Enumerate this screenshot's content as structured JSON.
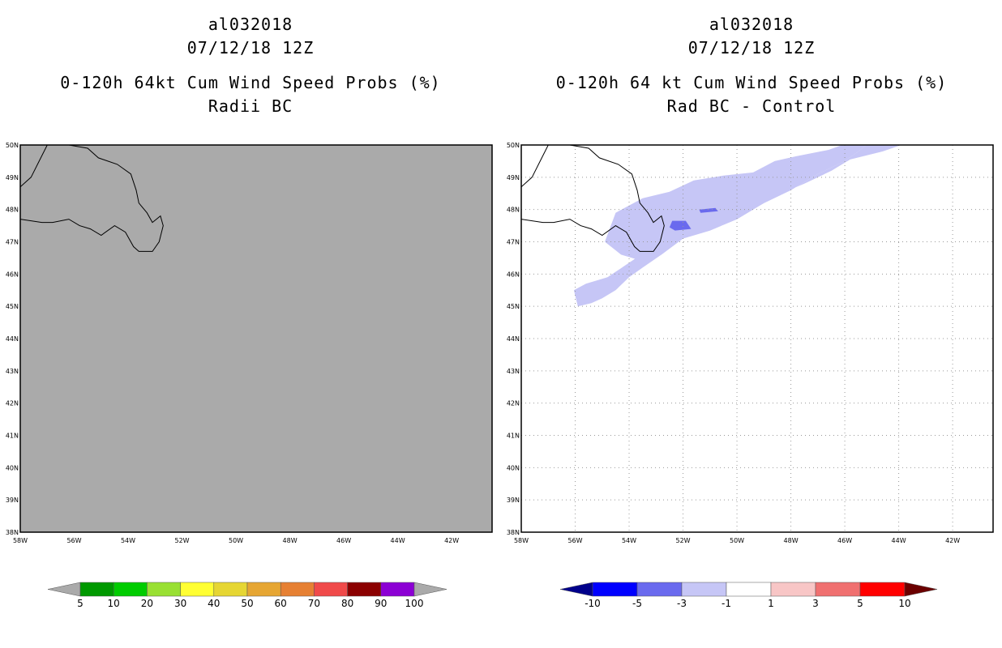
{
  "left_panel": {
    "title": [
      "al032018",
      "07/12/18 12Z",
      "0-120h 64kt Cum Wind Speed Probs (%)",
      "Radii BC"
    ],
    "fill_color": "#aaaaaa"
  },
  "right_panel": {
    "title": [
      "al032018",
      "07/12/18 12Z",
      "0-120h 64 kt Cum Wind Speed Probs (%)",
      "Rad BC - Control"
    ],
    "fill_color": "#ffffff"
  },
  "chart_data": {
    "type": "map",
    "region": {
      "lon_range": [
        -58,
        -40.5
      ],
      "lat_range": [
        38,
        50
      ]
    },
    "lat_labels": [
      "50N",
      "49N",
      "48N",
      "47N",
      "46N",
      "45N",
      "44N",
      "43N",
      "42N",
      "41N",
      "40N",
      "39N",
      "38N"
    ],
    "lon_labels": [
      "58W",
      "56W",
      "54W",
      "52W",
      "50W",
      "48W",
      "46W",
      "44W",
      "42W"
    ],
    "lat_values": [
      50,
      49,
      48,
      47,
      46,
      45,
      44,
      43,
      42,
      41,
      40,
      39,
      38
    ],
    "lon_values": [
      -58,
      -56,
      -54,
      -52,
      -50,
      -48,
      -46,
      -44,
      -42
    ],
    "coastline": [
      [
        -58,
        47.7
      ],
      [
        -57.2,
        47.6
      ],
      [
        -56.8,
        47.6
      ],
      [
        -56.2,
        47.7
      ],
      [
        -55.8,
        47.5
      ],
      [
        -55.4,
        47.4
      ],
      [
        -55.0,
        47.2
      ],
      [
        -54.5,
        47.5
      ],
      [
        -54.1,
        47.3
      ],
      [
        -53.8,
        46.85
      ],
      [
        -53.6,
        46.7
      ],
      [
        -53.1,
        46.7
      ],
      [
        -52.85,
        47.0
      ],
      [
        -52.7,
        47.5
      ],
      [
        -52.8,
        47.8
      ],
      [
        -53.1,
        47.6
      ],
      [
        -53.3,
        47.9
      ],
      [
        -53.6,
        48.2
      ],
      [
        -53.7,
        48.6
      ],
      [
        -53.9,
        49.1
      ],
      [
        -54.4,
        49.4
      ],
      [
        -55.1,
        49.6
      ],
      [
        -55.5,
        49.9
      ],
      [
        -56.2,
        50.0
      ],
      [
        -56.8,
        50.0
      ]
    ],
    "coastline2": [
      [
        -58,
        48.7
      ],
      [
        -57.6,
        49.0
      ],
      [
        -57.3,
        49.5
      ],
      [
        -57.0,
        50.0
      ]
    ],
    "diff_band_light": [
      [
        -56.05,
        45.5
      ],
      [
        -55.9,
        45.0
      ],
      [
        -55.4,
        45.1
      ],
      [
        -55.0,
        45.25
      ],
      [
        -54.5,
        45.5
      ],
      [
        -54.0,
        45.9
      ],
      [
        -53.5,
        46.2
      ],
      [
        -52.8,
        46.6
      ],
      [
        -52.0,
        47.1
      ],
      [
        -51.0,
        47.35
      ],
      [
        -50.0,
        47.7
      ],
      [
        -49.0,
        48.2
      ],
      [
        -48.0,
        48.6
      ],
      [
        -47.0,
        49.1
      ],
      [
        -46.0,
        49.5
      ],
      [
        -45.5,
        49.8
      ],
      [
        -45.2,
        50.0
      ],
      [
        -43.9,
        50.0
      ],
      [
        -44.6,
        49.8
      ],
      [
        -45.8,
        49.55
      ],
      [
        -46.5,
        49.2
      ],
      [
        -47.5,
        48.8
      ],
      [
        -48.5,
        48.45
      ],
      [
        -49.5,
        48.15
      ],
      [
        -50.5,
        47.8
      ],
      [
        -51.2,
        47.6
      ],
      [
        -51.8,
        47.45
      ],
      [
        -52.5,
        47.15
      ],
      [
        -53.2,
        46.8
      ],
      [
        -54.0,
        46.35
      ],
      [
        -54.8,
        45.9
      ],
      [
        -55.6,
        45.7
      ]
    ],
    "diff_band_light2": [
      [
        -54.5,
        47.9
      ],
      [
        -53.5,
        48.35
      ],
      [
        -52.5,
        48.55
      ],
      [
        -51.6,
        48.9
      ],
      [
        -50.5,
        49.05
      ],
      [
        -49.4,
        49.15
      ],
      [
        -48.6,
        49.5
      ],
      [
        -47.8,
        49.65
      ],
      [
        -46.6,
        49.85
      ],
      [
        -46.1,
        50.0
      ],
      [
        -45.2,
        50.0
      ],
      [
        -45.5,
        49.8
      ],
      [
        -46.0,
        49.5
      ],
      [
        -47.0,
        49.1
      ],
      [
        -48.0,
        48.6
      ],
      [
        -49.0,
        48.2
      ],
      [
        -50.0,
        47.7
      ],
      [
        -51.0,
        47.35
      ],
      [
        -52.0,
        47.1
      ],
      [
        -52.8,
        46.6
      ],
      [
        -53.5,
        46.4
      ],
      [
        -54.3,
        46.6
      ],
      [
        -54.9,
        47.0
      ]
    ],
    "diff_patches_medium": [
      [
        [
          -52.4,
          47.65
        ],
        [
          -51.9,
          47.65
        ],
        [
          -51.7,
          47.4
        ],
        [
          -52.3,
          47.35
        ],
        [
          -52.5,
          47.45
        ]
      ],
      [
        [
          -51.4,
          48.0
        ],
        [
          -50.8,
          48.05
        ],
        [
          -50.7,
          47.95
        ],
        [
          -51.35,
          47.9
        ]
      ]
    ]
  },
  "colorbar_left": {
    "labels": [
      "5",
      "10",
      "20",
      "30",
      "40",
      "50",
      "60",
      "70",
      "80",
      "90",
      "100"
    ],
    "colors": [
      "#009900",
      "#00cc00",
      "#99e033",
      "#ffff33",
      "#e6d633",
      "#e6a633",
      "#e68033",
      "#f04a4a",
      "#8b0000",
      "#8c00d4"
    ],
    "end_low": "#aaaaaa",
    "end_high": "#aaaaaa"
  },
  "colorbar_right": {
    "labels": [
      "-10",
      "-5",
      "-3",
      "-1",
      "1",
      "3",
      "5",
      "10"
    ],
    "colors": [
      "#0000ff",
      "#6a6aee",
      "#c6c6f6",
      "#ffffff",
      "#f8c6c6",
      "#f07070",
      "#ff0000"
    ],
    "end_low": "#00008b",
    "end_high": "#6b0000"
  }
}
